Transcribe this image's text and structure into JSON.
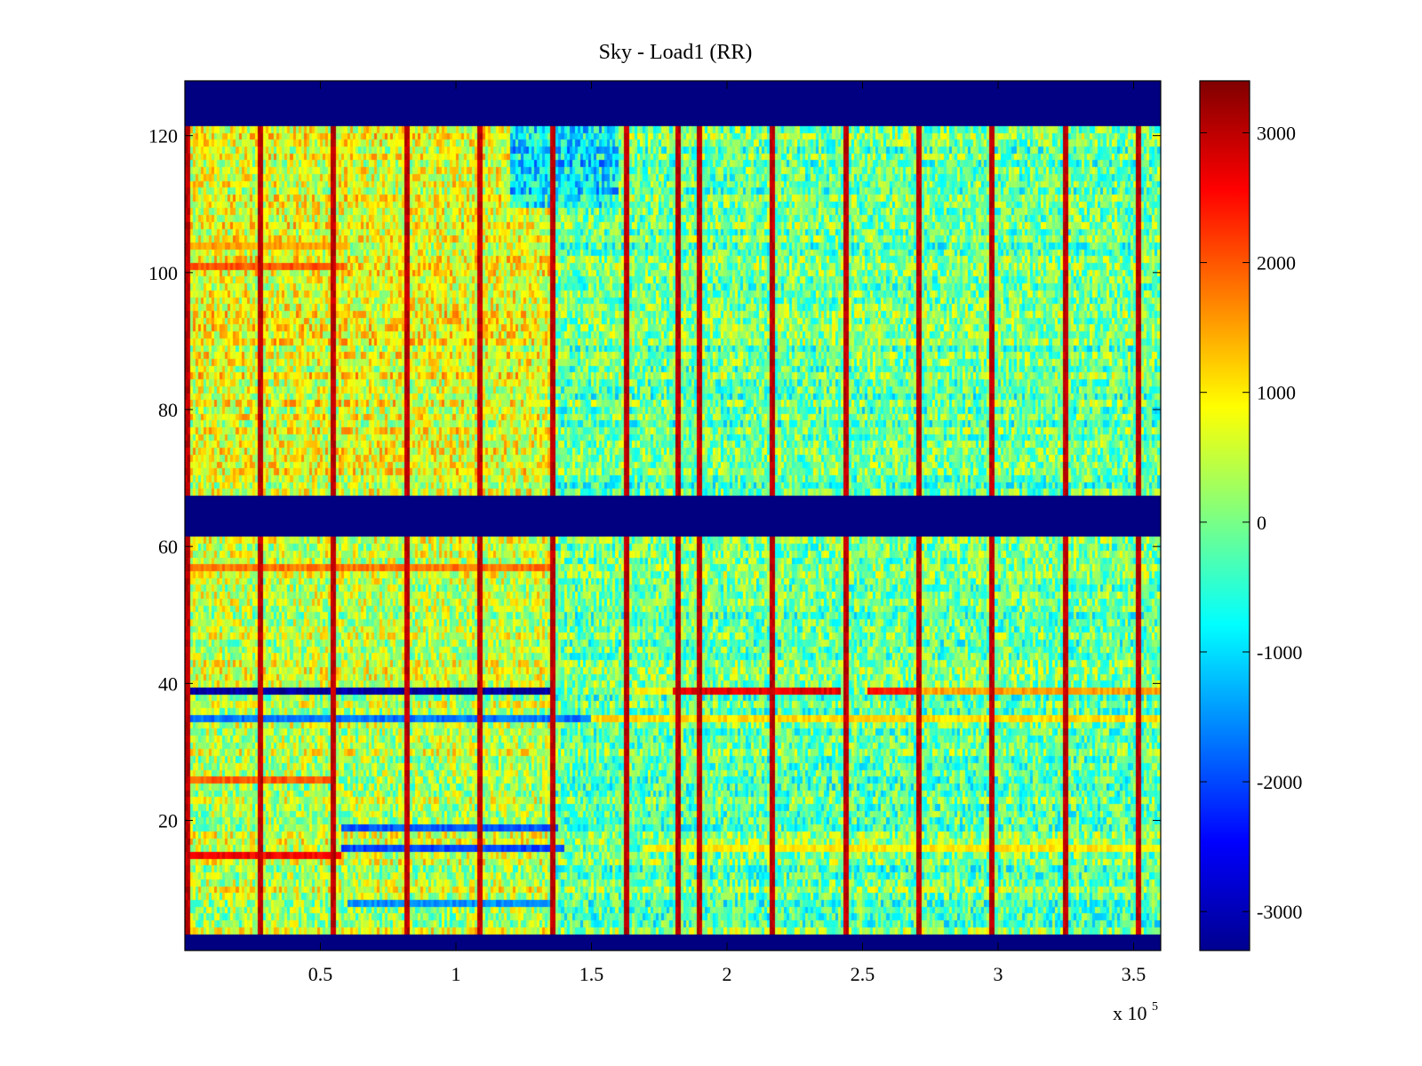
{
  "chart_data": {
    "type": "heatmap",
    "title": "Sky - Load1 (RR)",
    "xlabel": "",
    "ylabel": "",
    "x_multiplier": {
      "text": "x 10",
      "exponent": "5"
    },
    "xlim": [
      0,
      3.6
    ],
    "ylim": [
      1,
      128
    ],
    "xticks": [
      {
        "value": 0.5,
        "label": "0.5"
      },
      {
        "value": 1,
        "label": "1"
      },
      {
        "value": 1.5,
        "label": "1.5"
      },
      {
        "value": 2,
        "label": "2"
      },
      {
        "value": 2.5,
        "label": "2.5"
      },
      {
        "value": 3,
        "label": "3"
      },
      {
        "value": 3.5,
        "label": "3.5"
      }
    ],
    "yticks": [
      {
        "value": 20,
        "label": "20"
      },
      {
        "value": 40,
        "label": "40"
      },
      {
        "value": 60,
        "label": "60"
      },
      {
        "value": 80,
        "label": "80"
      },
      {
        "value": 100,
        "label": "100"
      },
      {
        "value": 120,
        "label": "120"
      }
    ],
    "colorbar": {
      "colormap": "jet",
      "clim": [
        -3300,
        3400
      ],
      "ticks": [
        {
          "value": 3000,
          "label": "3000"
        },
        {
          "value": 2000,
          "label": "2000"
        },
        {
          "value": 1000,
          "label": "1000"
        },
        {
          "value": 0,
          "label": "0"
        },
        {
          "value": -1000,
          "label": "-1000"
        },
        {
          "value": -2000,
          "label": "-2000"
        },
        {
          "value": -3000,
          "label": "-3000"
        }
      ]
    },
    "masked_channel_ranges": [
      [
        1,
        3.5
      ],
      [
        61.5,
        67.5
      ],
      [
        121.5,
        128
      ]
    ],
    "masked_value": -3300,
    "baseline_value": 0,
    "noise_amplitude": 900,
    "spike_columns_x": [
      0.01,
      0.28,
      0.55,
      0.82,
      1.09,
      1.36,
      1.63,
      1.82,
      1.9,
      2.17,
      2.44,
      2.71,
      2.98,
      3.25,
      3.52
    ],
    "spike_value": 3000,
    "regions": [
      {
        "x": [
          0,
          1.35
        ],
        "y": [
          68,
          121
        ],
        "value": 700
      },
      {
        "x": [
          0,
          1.35
        ],
        "y": [
          4,
          61
        ],
        "value": 450
      },
      {
        "x": [
          1.35,
          3.6
        ],
        "y": [
          4,
          121
        ],
        "value": -100
      },
      {
        "x": [
          1.2,
          1.6
        ],
        "y": [
          110,
          121
        ],
        "value": -900
      }
    ],
    "row_features": [
      {
        "y": 39,
        "x": [
          0,
          1.37
        ],
        "value": -3100
      },
      {
        "y": 39,
        "x": [
          1.66,
          1.8
        ],
        "value": 900
      },
      {
        "y": 39,
        "x": [
          1.8,
          2.42
        ],
        "value": 2700
      },
      {
        "y": 39,
        "x": [
          2.52,
          2.7
        ],
        "value": 2400
      },
      {
        "y": 39,
        "x": [
          2.7,
          3.6
        ],
        "value": 1500
      },
      {
        "y": 35,
        "x": [
          0,
          1.5
        ],
        "value": -1700
      },
      {
        "y": 35,
        "x": [
          1.5,
          3.6
        ],
        "value": 1100
      },
      {
        "y": 15,
        "x": [
          0,
          0.58
        ],
        "value": 2600
      },
      {
        "y": 16,
        "x": [
          0.58,
          1.4
        ],
        "value": -2000
      },
      {
        "y": 16,
        "x": [
          1.7,
          3.6
        ],
        "value": 1000
      },
      {
        "y": 19,
        "x": [
          0.58,
          1.38
        ],
        "value": -1900
      },
      {
        "y": 26,
        "x": [
          0,
          0.55
        ],
        "value": 2000
      },
      {
        "y": 57,
        "x": [
          0,
          1.35
        ],
        "value": 1800
      },
      {
        "y": 101,
        "x": [
          0,
          0.6
        ],
        "value": 2000
      },
      {
        "y": 104,
        "x": [
          0,
          0.6
        ],
        "value": 1500
      },
      {
        "y": 8,
        "x": [
          0.6,
          1.35
        ],
        "value": -1500
      }
    ]
  }
}
